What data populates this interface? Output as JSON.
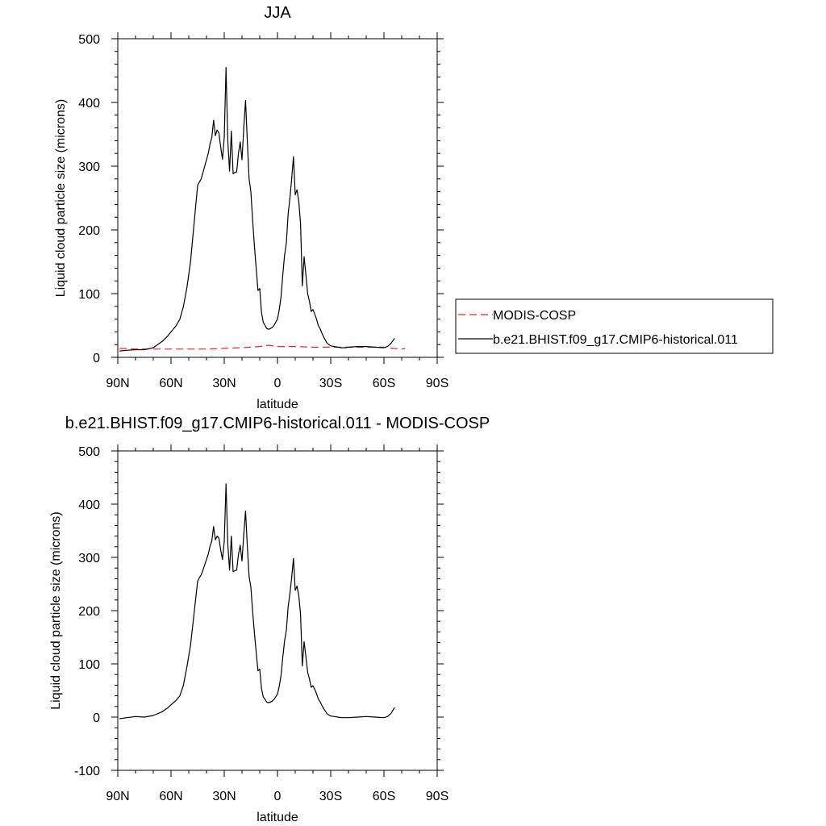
{
  "chart_data": [
    {
      "type": "line",
      "title": "JJA",
      "xlabel": "latitude",
      "ylabel": "Liquid cloud particle size (microns)",
      "xlim": [
        90,
        -90
      ],
      "ylim": [
        0,
        500
      ],
      "x_ticks": [
        90,
        60,
        30,
        0,
        -30,
        -60,
        -90
      ],
      "x_tick_labels": [
        "90N",
        "60N",
        "30N",
        "0",
        "30S",
        "60S",
        "90S"
      ],
      "y_ticks": [
        0,
        100,
        200,
        300,
        400,
        500
      ],
      "y_tick_labels": [
        "0",
        "100",
        "200",
        "300",
        "400",
        "500"
      ],
      "legend": {
        "placement": "outside-right"
      },
      "series": [
        {
          "name": "MODIS-COSP",
          "color": "#e8262a",
          "dash": true,
          "x": [
            89,
            80,
            70,
            60,
            50,
            40,
            30,
            20,
            15,
            10,
            5,
            0,
            -5,
            -10,
            -20,
            -30,
            -40,
            -50,
            -60,
            -65,
            -70,
            -72
          ],
          "y": [
            14,
            13,
            13,
            13,
            13,
            13,
            14,
            15,
            16,
            17,
            19,
            17,
            17,
            17,
            16,
            16,
            16,
            16,
            16,
            14,
            13,
            14
          ]
        },
        {
          "name": "b.e21.BHIST.f09_g17.CMIP6-historical.011",
          "color": "#000000",
          "dash": false,
          "x": [
            89,
            85,
            80,
            75,
            70,
            65,
            62,
            60,
            57,
            55,
            53,
            51,
            49,
            47,
            45,
            44,
            43,
            42,
            41,
            40,
            39,
            38,
            37,
            36,
            35,
            34,
            33,
            32,
            31,
            30,
            29,
            28,
            27,
            26,
            25,
            24,
            23,
            22,
            21,
            20,
            19,
            18,
            17,
            16,
            15,
            14,
            13,
            12,
            11,
            10,
            9,
            8,
            7,
            6,
            5,
            4,
            3,
            2,
            1,
            0,
            -1,
            -2,
            -3,
            -4,
            -5,
            -6,
            -7,
            -8,
            -9,
            -10,
            -11,
            -12,
            -13,
            -14,
            -15,
            -16,
            -17,
            -18,
            -19,
            -20,
            -21,
            -22,
            -23,
            -24,
            -25,
            -26,
            -27,
            -28,
            -30,
            -32,
            -34,
            -36,
            -38,
            -40,
            -45,
            -50,
            -55,
            -60,
            -62,
            -64,
            -66
          ],
          "y": [
            10,
            11,
            12,
            12,
            15,
            25,
            33,
            40,
            50,
            60,
            80,
            110,
            150,
            210,
            270,
            275,
            280,
            290,
            300,
            310,
            320,
            335,
            345,
            372,
            348,
            357,
            352,
            330,
            311,
            345,
            455,
            340,
            292,
            355,
            288,
            290,
            291,
            320,
            338,
            310,
            360,
            403,
            340,
            280,
            260,
            215,
            175,
            140,
            105,
            108,
            70,
            55,
            50,
            45,
            44,
            45,
            47,
            50,
            55,
            60,
            75,
            95,
            130,
            160,
            180,
            225,
            250,
            280,
            315,
            255,
            263,
            245,
            210,
            112,
            158,
            130,
            100,
            88,
            72,
            75,
            68,
            60,
            50,
            45,
            38,
            32,
            27,
            22,
            18,
            17,
            16,
            15,
            15,
            16,
            17,
            17,
            16,
            15,
            17,
            22,
            30
          ]
        }
      ]
    },
    {
      "type": "line",
      "title": "b.e21.BHIST.f09_g17.CMIP6-historical.011 - MODIS-COSP",
      "xlabel": "latitude",
      "ylabel": "Liquid cloud particle size (microns)",
      "xlim": [
        90,
        -90
      ],
      "ylim": [
        -100,
        500
      ],
      "x_ticks": [
        90,
        60,
        30,
        0,
        -30,
        -60,
        -90
      ],
      "x_tick_labels": [
        "90N",
        "60N",
        "30N",
        "0",
        "30S",
        "60S",
        "90S"
      ],
      "y_ticks": [
        -100,
        0,
        100,
        200,
        300,
        400,
        500
      ],
      "y_tick_labels": [
        "-100",
        "0",
        "100",
        "200",
        "300",
        "400",
        "500"
      ],
      "series": [
        {
          "color": "#000000",
          "dash": false,
          "x": [
            89,
            85,
            80,
            75,
            70,
            65,
            62,
            60,
            57,
            55,
            53,
            51,
            49,
            47,
            45,
            44,
            43,
            42,
            41,
            40,
            39,
            38,
            37,
            36,
            35,
            34,
            33,
            32,
            31,
            30,
            29,
            28,
            27,
            26,
            25,
            24,
            23,
            22,
            21,
            20,
            19,
            18,
            17,
            16,
            15,
            14,
            13,
            12,
            11,
            10,
            9,
            8,
            7,
            6,
            5,
            4,
            3,
            2,
            1,
            0,
            -1,
            -2,
            -3,
            -4,
            -5,
            -6,
            -7,
            -8,
            -9,
            -10,
            -11,
            -12,
            -13,
            -14,
            -15,
            -16,
            -17,
            -18,
            -19,
            -20,
            -21,
            -22,
            -23,
            -24,
            -25,
            -26,
            -27,
            -28,
            -30,
            -32,
            -34,
            -36,
            -38,
            -40,
            -45,
            -50,
            -55,
            -60,
            -62,
            -64,
            -66
          ],
          "y": [
            -3,
            -1,
            1,
            0,
            3,
            10,
            17,
            23,
            32,
            40,
            60,
            95,
            135,
            195,
            255,
            262,
            267,
            276,
            286,
            296,
            306,
            321,
            331,
            358,
            333,
            340,
            336,
            314,
            296,
            330,
            438,
            325,
            276,
            340,
            273,
            275,
            276,
            305,
            323,
            293,
            343,
            387,
            322,
            264,
            244,
            198,
            158,
            122,
            87,
            90,
            53,
            38,
            33,
            28,
            27,
            28,
            30,
            33,
            38,
            43,
            58,
            78,
            113,
            143,
            163,
            207,
            232,
            262,
            298,
            238,
            246,
            228,
            193,
            96,
            142,
            114,
            84,
            72,
            56,
            59,
            52,
            44,
            34,
            29,
            22,
            16,
            11,
            6,
            2,
            1,
            0,
            -1,
            -1,
            -1,
            0,
            1,
            0,
            -1,
            1,
            7,
            18
          ]
        }
      ]
    }
  ]
}
